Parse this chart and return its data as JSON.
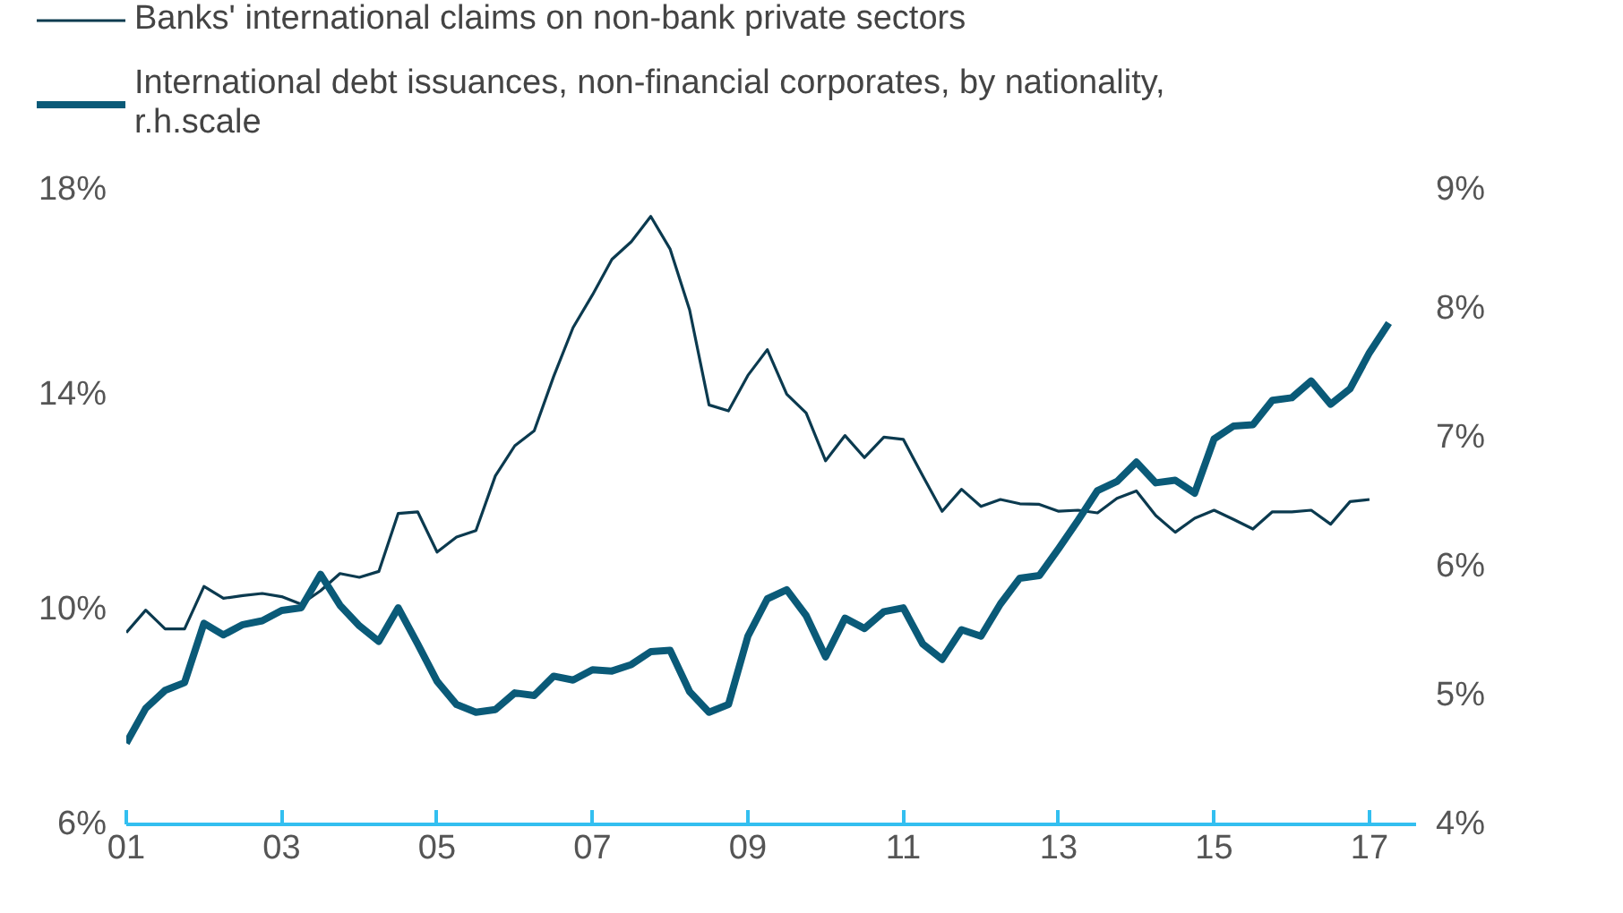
{
  "chart_data": {
    "type": "line",
    "x": [
      2001,
      2001.25,
      2001.5,
      2001.75,
      2002,
      2002.25,
      2002.5,
      2002.75,
      2003,
      2003.25,
      2003.5,
      2003.75,
      2004,
      2004.25,
      2004.5,
      2004.75,
      2005,
      2005.25,
      2005.5,
      2005.75,
      2006,
      2006.25,
      2006.5,
      2006.75,
      2007,
      2007.25,
      2007.5,
      2007.75,
      2008,
      2008.25,
      2008.5,
      2008.75,
      2009,
      2009.25,
      2009.5,
      2009.75,
      2010,
      2010.25,
      2010.5,
      2010.75,
      2011,
      2011.25,
      2011.5,
      2011.75,
      2012,
      2012.25,
      2012.5,
      2012.75,
      2013,
      2013.25,
      2013.5,
      2013.75,
      2014,
      2014.25,
      2014.5,
      2014.75,
      2015,
      2015.25,
      2015.5,
      2015.75,
      2016,
      2016.25,
      2016.5,
      2016.75,
      2017,
      2017.25
    ],
    "series": [
      {
        "name": "Banks' international claims on non-bank private sectors",
        "color": "#0b3a4f",
        "values": [
          9.57,
          9.99,
          9.64,
          9.64,
          10.43,
          10.21,
          10.26,
          10.3,
          10.24,
          10.1,
          10.35,
          10.67,
          10.6,
          10.71,
          11.79,
          11.82,
          11.07,
          11.35,
          11.47,
          12.49,
          13.05,
          13.33,
          14.34,
          15.25,
          15.86,
          16.52,
          16.85,
          17.32,
          16.71,
          15.58,
          13.81,
          13.7,
          14.36,
          14.84,
          14.01,
          13.66,
          12.77,
          13.24,
          12.83,
          13.21,
          13.17,
          12.49,
          11.83,
          12.24,
          11.92,
          12.05,
          11.97,
          11.96,
          11.83,
          11.85,
          11.8,
          12.07,
          12.21,
          11.75,
          11.44,
          11.7,
          11.85,
          11.68,
          11.5,
          11.82,
          11.82,
          11.85,
          11.59,
          12.01,
          12.05,
          null
        ]
      },
      {
        "name": "International debt issuances, non-financial corporates, by nationality, r.h.scale",
        "color": "#0a5a78",
        "axis": "y2",
        "values": [
          4.63,
          4.9,
          5.04,
          5.1,
          5.56,
          5.47,
          5.55,
          5.58,
          5.66,
          5.68,
          5.94,
          5.7,
          5.54,
          5.42,
          5.68,
          5.4,
          5.11,
          4.93,
          4.87,
          4.89,
          5.02,
          5.0,
          5.15,
          5.12,
          5.2,
          5.19,
          5.24,
          5.34,
          5.35,
          5.03,
          4.87,
          4.93,
          5.46,
          5.75,
          5.82,
          5.62,
          5.3,
          5.6,
          5.52,
          5.65,
          5.68,
          5.4,
          5.28,
          5.51,
          5.46,
          5.71,
          5.91,
          5.93,
          6.14,
          6.36,
          6.59,
          6.66,
          6.81,
          6.65,
          6.67,
          6.57,
          6.99,
          7.09,
          7.1,
          7.29,
          7.31,
          7.44,
          7.26,
          7.38,
          7.66,
          7.89
        ]
      }
    ],
    "xlim": [
      2001,
      2017.6
    ],
    "xticks": [
      {
        "value": 2001,
        "label": "01"
      },
      {
        "value": 2003,
        "label": "03"
      },
      {
        "value": 2005,
        "label": "05"
      },
      {
        "value": 2007,
        "label": "07"
      },
      {
        "value": 2009,
        "label": "09"
      },
      {
        "value": 2011,
        "label": "11"
      },
      {
        "value": 2013,
        "label": "13"
      },
      {
        "value": 2015,
        "label": "15"
      },
      {
        "value": 2017,
        "label": "17"
      }
    ],
    "ylim": [
      6,
      18
    ],
    "yticks": [
      {
        "value": 6,
        "label": "6%"
      },
      {
        "value": 10,
        "label": "10%"
      },
      {
        "value": 14,
        "label": "14%"
      },
      {
        "value": 18,
        "label": "18%"
      }
    ],
    "y2lim": [
      4,
      9
    ],
    "y2ticks": [
      {
        "value": 4,
        "label": "4%"
      },
      {
        "value": 5,
        "label": "5%"
      },
      {
        "value": 6,
        "label": "6%"
      },
      {
        "value": 7,
        "label": "7%"
      },
      {
        "value": 8,
        "label": "8%"
      },
      {
        "value": 9,
        "label": "9%"
      }
    ],
    "grid": false,
    "legend": "top left",
    "marker": "none",
    "line_style": "solid"
  }
}
